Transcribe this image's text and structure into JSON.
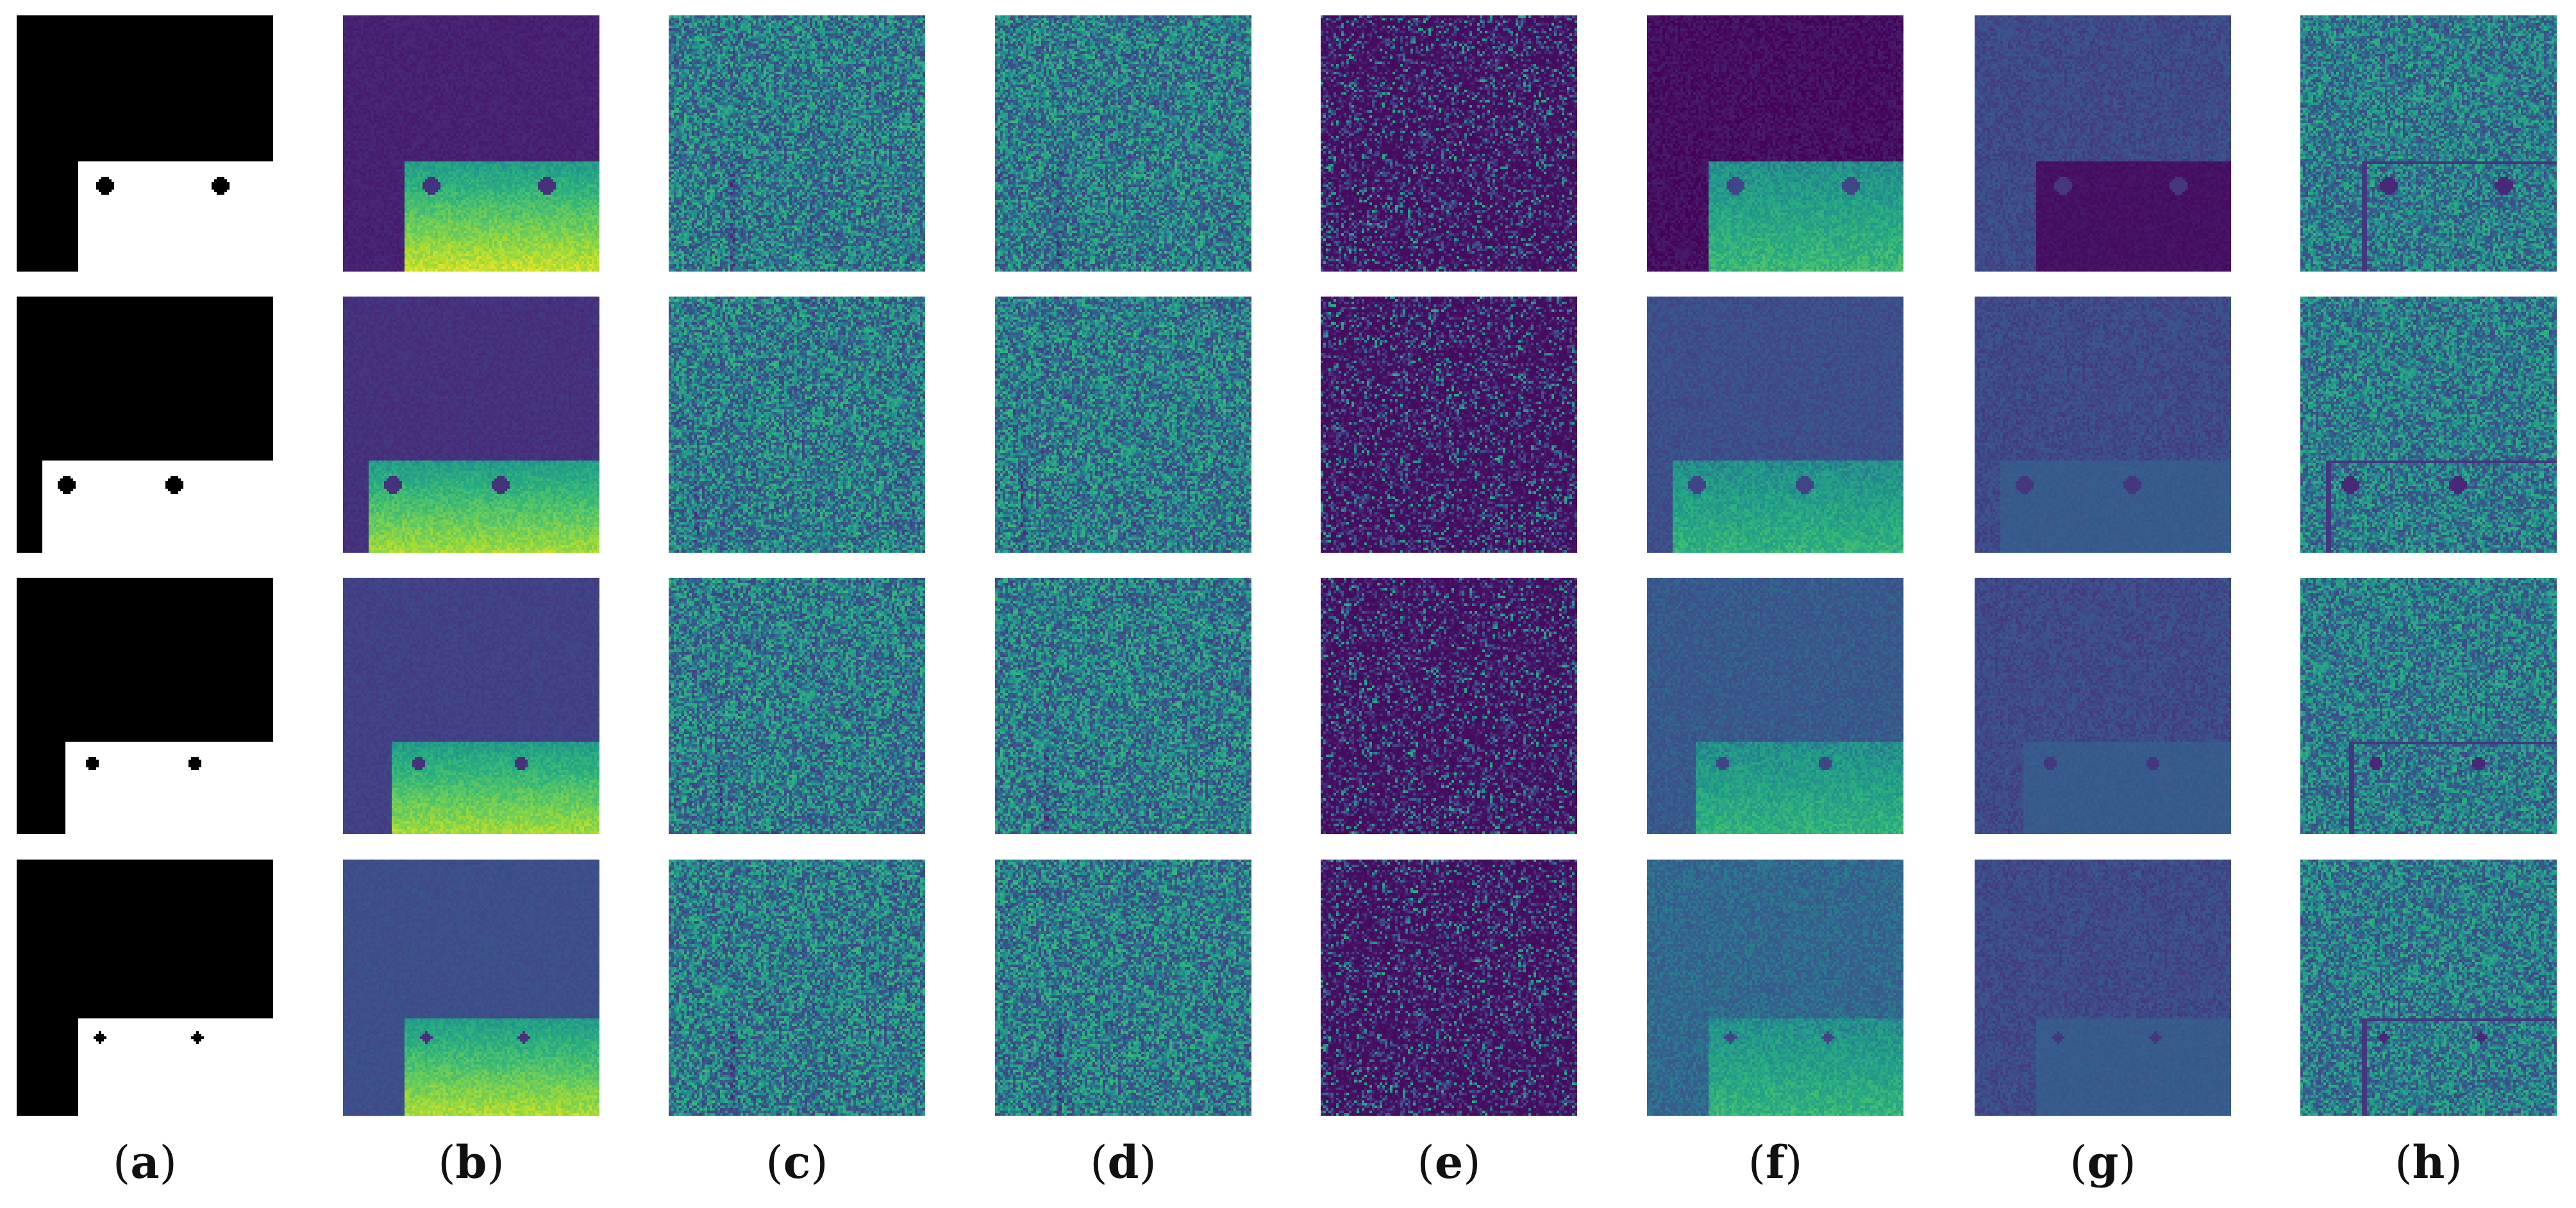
{
  "figure": {
    "columns": [
      {
        "id": "a",
        "label": "(a)",
        "kind": "mask"
      },
      {
        "id": "b",
        "label": "(b)",
        "kind": "plate-bright"
      },
      {
        "id": "c",
        "label": "(c)",
        "kind": "noise-green"
      },
      {
        "id": "d",
        "label": "(d)",
        "kind": "noise-green"
      },
      {
        "id": "e",
        "label": "(e)",
        "kind": "noise-dark"
      },
      {
        "id": "f",
        "label": "(f)",
        "kind": "plate-teal"
      },
      {
        "id": "g",
        "label": "(g)",
        "kind": "plate-inverted"
      },
      {
        "id": "h",
        "label": "(h)",
        "kind": "noise-plate"
      }
    ],
    "rows": 4,
    "colormap": "viridis",
    "colors": {
      "background": "#ffffff",
      "mask_background": "#000000",
      "mask_foreground": "#ffffff",
      "viridis_low": "#440154",
      "viridis_mid": "#21908d",
      "viridis_high": "#fde725"
    }
  }
}
